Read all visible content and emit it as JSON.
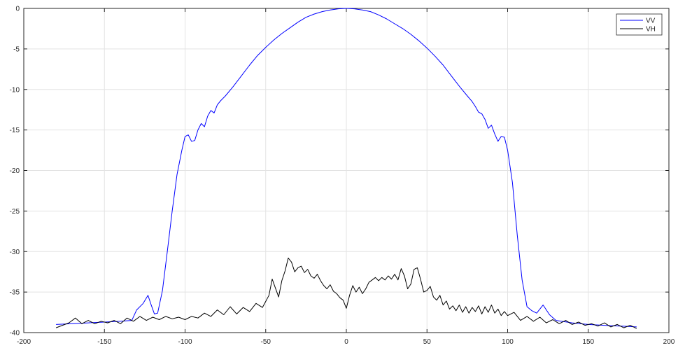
{
  "chart_data": {
    "type": "line",
    "title": "",
    "xlabel": "",
    "ylabel": "",
    "xlim": [
      -200,
      200
    ],
    "ylim": [
      -40,
      0
    ],
    "xticks": [
      -200,
      -150,
      -100,
      -50,
      0,
      50,
      100,
      150,
      200
    ],
    "yticks": [
      0,
      -5,
      -10,
      -15,
      -20,
      -25,
      -30,
      -35,
      -40
    ],
    "grid": true,
    "legend": {
      "placement": "top-right"
    },
    "series": [
      {
        "name": "VV",
        "color": "#0000ff",
        "points": [
          [
            -180,
            -39.0
          ],
          [
            -170,
            -38.9
          ],
          [
            -160,
            -38.8
          ],
          [
            -150,
            -38.7
          ],
          [
            -140,
            -38.6
          ],
          [
            -133,
            -38.5
          ],
          [
            -130,
            -37.2
          ],
          [
            -126,
            -36.4
          ],
          [
            -123,
            -35.4
          ],
          [
            -121,
            -36.6
          ],
          [
            -119,
            -37.7
          ],
          [
            -117,
            -37.6
          ],
          [
            -114,
            -34.8
          ],
          [
            -111,
            -30.0
          ],
          [
            -108,
            -25.0
          ],
          [
            -105,
            -20.5
          ],
          [
            -102,
            -17.5
          ],
          [
            -100,
            -15.8
          ],
          [
            -98,
            -15.6
          ],
          [
            -96,
            -16.4
          ],
          [
            -94,
            -16.3
          ],
          [
            -92,
            -15.0
          ],
          [
            -90,
            -14.2
          ],
          [
            -88,
            -14.6
          ],
          [
            -86,
            -13.3
          ],
          [
            -84,
            -12.6
          ],
          [
            -82,
            -12.9
          ],
          [
            -80,
            -11.9
          ],
          [
            -78,
            -11.4
          ],
          [
            -75,
            -10.8
          ],
          [
            -70,
            -9.6
          ],
          [
            -65,
            -8.3
          ],
          [
            -60,
            -7.0
          ],
          [
            -55,
            -5.8
          ],
          [
            -50,
            -4.8
          ],
          [
            -45,
            -3.9
          ],
          [
            -40,
            -3.1
          ],
          [
            -35,
            -2.4
          ],
          [
            -30,
            -1.7
          ],
          [
            -25,
            -1.1
          ],
          [
            -20,
            -0.7
          ],
          [
            -15,
            -0.4
          ],
          [
            -10,
            -0.2
          ],
          [
            -5,
            -0.05
          ],
          [
            0,
            0.0
          ],
          [
            5,
            -0.05
          ],
          [
            10,
            -0.2
          ],
          [
            15,
            -0.4
          ],
          [
            20,
            -0.8
          ],
          [
            25,
            -1.3
          ],
          [
            30,
            -1.9
          ],
          [
            35,
            -2.5
          ],
          [
            40,
            -3.2
          ],
          [
            45,
            -4.0
          ],
          [
            50,
            -4.9
          ],
          [
            55,
            -5.9
          ],
          [
            60,
            -7.0
          ],
          [
            65,
            -8.3
          ],
          [
            70,
            -9.6
          ],
          [
            75,
            -10.8
          ],
          [
            78,
            -11.5
          ],
          [
            80,
            -12.1
          ],
          [
            82,
            -12.8
          ],
          [
            84,
            -13.0
          ],
          [
            86,
            -13.7
          ],
          [
            88,
            -14.8
          ],
          [
            90,
            -14.4
          ],
          [
            92,
            -15.5
          ],
          [
            94,
            -16.4
          ],
          [
            96,
            -15.8
          ],
          [
            98,
            -15.9
          ],
          [
            100,
            -17.5
          ],
          [
            103,
            -21.5
          ],
          [
            106,
            -28.0
          ],
          [
            109,
            -33.5
          ],
          [
            112,
            -36.8
          ],
          [
            115,
            -37.3
          ],
          [
            118,
            -37.6
          ],
          [
            122,
            -36.6
          ],
          [
            126,
            -37.8
          ],
          [
            130,
            -38.5
          ],
          [
            140,
            -38.8
          ],
          [
            150,
            -39.0
          ],
          [
            160,
            -39.1
          ],
          [
            170,
            -39.2
          ],
          [
            180,
            -39.3
          ]
        ]
      },
      {
        "name": "VH",
        "color": "#000000",
        "points": [
          [
            -180,
            -39.4
          ],
          [
            -176,
            -39.1
          ],
          [
            -172,
            -38.8
          ],
          [
            -168,
            -38.2
          ],
          [
            -164,
            -38.9
          ],
          [
            -160,
            -38.5
          ],
          [
            -156,
            -38.9
          ],
          [
            -152,
            -38.6
          ],
          [
            -148,
            -38.8
          ],
          [
            -144,
            -38.5
          ],
          [
            -140,
            -38.9
          ],
          [
            -136,
            -38.2
          ],
          [
            -132,
            -38.6
          ],
          [
            -128,
            -38.0
          ],
          [
            -124,
            -38.5
          ],
          [
            -120,
            -38.1
          ],
          [
            -116,
            -38.4
          ],
          [
            -112,
            -38.0
          ],
          [
            -108,
            -38.3
          ],
          [
            -104,
            -38.1
          ],
          [
            -100,
            -38.4
          ],
          [
            -96,
            -38.0
          ],
          [
            -92,
            -38.2
          ],
          [
            -88,
            -37.6
          ],
          [
            -84,
            -38.0
          ],
          [
            -80,
            -37.2
          ],
          [
            -76,
            -37.8
          ],
          [
            -72,
            -36.8
          ],
          [
            -68,
            -37.7
          ],
          [
            -64,
            -36.9
          ],
          [
            -60,
            -37.4
          ],
          [
            -56,
            -36.4
          ],
          [
            -52,
            -36.9
          ],
          [
            -48,
            -35.4
          ],
          [
            -46,
            -33.4
          ],
          [
            -44,
            -34.5
          ],
          [
            -42,
            -35.6
          ],
          [
            -40,
            -33.6
          ],
          [
            -38,
            -32.4
          ],
          [
            -36,
            -30.8
          ],
          [
            -34,
            -31.3
          ],
          [
            -32,
            -32.5
          ],
          [
            -30,
            -32.0
          ],
          [
            -28,
            -31.8
          ],
          [
            -26,
            -32.6
          ],
          [
            -24,
            -32.2
          ],
          [
            -22,
            -33.0
          ],
          [
            -20,
            -33.3
          ],
          [
            -18,
            -32.8
          ],
          [
            -16,
            -33.6
          ],
          [
            -14,
            -34.2
          ],
          [
            -12,
            -34.6
          ],
          [
            -10,
            -34.1
          ],
          [
            -8,
            -34.9
          ],
          [
            -6,
            -35.2
          ],
          [
            -4,
            -35.7
          ],
          [
            -2,
            -36.0
          ],
          [
            0,
            -37.0
          ],
          [
            2,
            -35.4
          ],
          [
            4,
            -34.2
          ],
          [
            6,
            -35.0
          ],
          [
            8,
            -34.4
          ],
          [
            10,
            -35.2
          ],
          [
            12,
            -34.6
          ],
          [
            14,
            -33.8
          ],
          [
            16,
            -33.5
          ],
          [
            18,
            -33.2
          ],
          [
            20,
            -33.6
          ],
          [
            22,
            -33.2
          ],
          [
            24,
            -33.5
          ],
          [
            26,
            -33.0
          ],
          [
            28,
            -33.4
          ],
          [
            30,
            -32.8
          ],
          [
            32,
            -33.5
          ],
          [
            34,
            -32.1
          ],
          [
            36,
            -33.0
          ],
          [
            38,
            -34.6
          ],
          [
            40,
            -34.0
          ],
          [
            42,
            -32.2
          ],
          [
            44,
            -32.0
          ],
          [
            46,
            -33.4
          ],
          [
            48,
            -35.0
          ],
          [
            50,
            -34.8
          ],
          [
            52,
            -34.3
          ],
          [
            54,
            -35.6
          ],
          [
            56,
            -36.0
          ],
          [
            58,
            -35.4
          ],
          [
            60,
            -36.6
          ],
          [
            62,
            -36.1
          ],
          [
            64,
            -37.1
          ],
          [
            66,
            -36.7
          ],
          [
            68,
            -37.3
          ],
          [
            70,
            -36.6
          ],
          [
            72,
            -37.5
          ],
          [
            74,
            -36.8
          ],
          [
            76,
            -37.6
          ],
          [
            78,
            -36.9
          ],
          [
            80,
            -37.4
          ],
          [
            82,
            -36.7
          ],
          [
            84,
            -37.7
          ],
          [
            86,
            -36.8
          ],
          [
            88,
            -37.5
          ],
          [
            90,
            -36.6
          ],
          [
            92,
            -37.6
          ],
          [
            94,
            -37.1
          ],
          [
            96,
            -37.9
          ],
          [
            98,
            -37.4
          ],
          [
            100,
            -37.9
          ],
          [
            104,
            -37.5
          ],
          [
            108,
            -38.5
          ],
          [
            112,
            -38.0
          ],
          [
            116,
            -38.6
          ],
          [
            120,
            -38.1
          ],
          [
            124,
            -38.8
          ],
          [
            128,
            -38.4
          ],
          [
            132,
            -38.9
          ],
          [
            136,
            -38.5
          ],
          [
            140,
            -39.0
          ],
          [
            144,
            -38.7
          ],
          [
            148,
            -39.1
          ],
          [
            152,
            -38.9
          ],
          [
            156,
            -39.2
          ],
          [
            160,
            -38.8
          ],
          [
            164,
            -39.3
          ],
          [
            168,
            -39.0
          ],
          [
            172,
            -39.4
          ],
          [
            176,
            -39.1
          ],
          [
            180,
            -39.5
          ]
        ]
      }
    ]
  }
}
